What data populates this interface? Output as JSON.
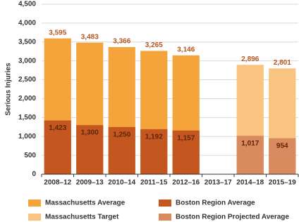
{
  "chart_data": {
    "type": "bar",
    "bar_mode": "overlay",
    "y_label": "Serious Injuries",
    "categories": [
      "2008–12",
      "2009–13",
      "2010–14",
      "2011–15",
      "2012–16",
      "2013–17",
      "2014–18",
      "2015–19"
    ],
    "series": [
      {
        "name": "Massachusetts Average",
        "color": "#f5a33b",
        "values": [
          3595,
          3483,
          3366,
          3265,
          3146,
          null,
          null,
          null
        ],
        "value_labels": [
          "3,595",
          "3,483",
          "3,366",
          "3,265",
          "3,146",
          null,
          null,
          null
        ]
      },
      {
        "name": "Massachusetts Target",
        "color": "#f9c47f",
        "values": [
          null,
          null,
          null,
          null,
          null,
          null,
          2896,
          2801
        ],
        "value_labels": [
          null,
          null,
          null,
          null,
          null,
          null,
          "2,896",
          "2,801"
        ]
      },
      {
        "name": "Boston Region Average",
        "color": "#c4571f",
        "values": [
          1423,
          1300,
          1250,
          1192,
          1157,
          null,
          null,
          null
        ],
        "value_labels": [
          "1,423",
          "1,300",
          "1,250",
          "1,192",
          "1,157",
          null,
          null,
          null
        ]
      },
      {
        "name": "Boston Region Projected Average",
        "color": "#d98a5e",
        "values": [
          null,
          null,
          null,
          null,
          null,
          null,
          1017,
          954
        ],
        "value_labels": [
          null,
          null,
          null,
          null,
          null,
          null,
          "1,017",
          "954"
        ]
      }
    ],
    "ylim": [
      0,
      4500
    ],
    "yticks": [
      0,
      500,
      {
        "value": 1000,
        "label": "1,000"
      },
      {
        "value": 1500,
        "label": "1,500"
      },
      {
        "value": 2000,
        "label": "2,000"
      },
      {
        "value": 2500,
        "label": "2,500"
      },
      {
        "value": 3000,
        "label": "3,000"
      },
      {
        "value": 3500,
        "label": "3,500"
      },
      {
        "value": 4000,
        "label": "4,000"
      },
      {
        "value": 4500,
        "label": "4,500"
      }
    ],
    "grid": true
  }
}
